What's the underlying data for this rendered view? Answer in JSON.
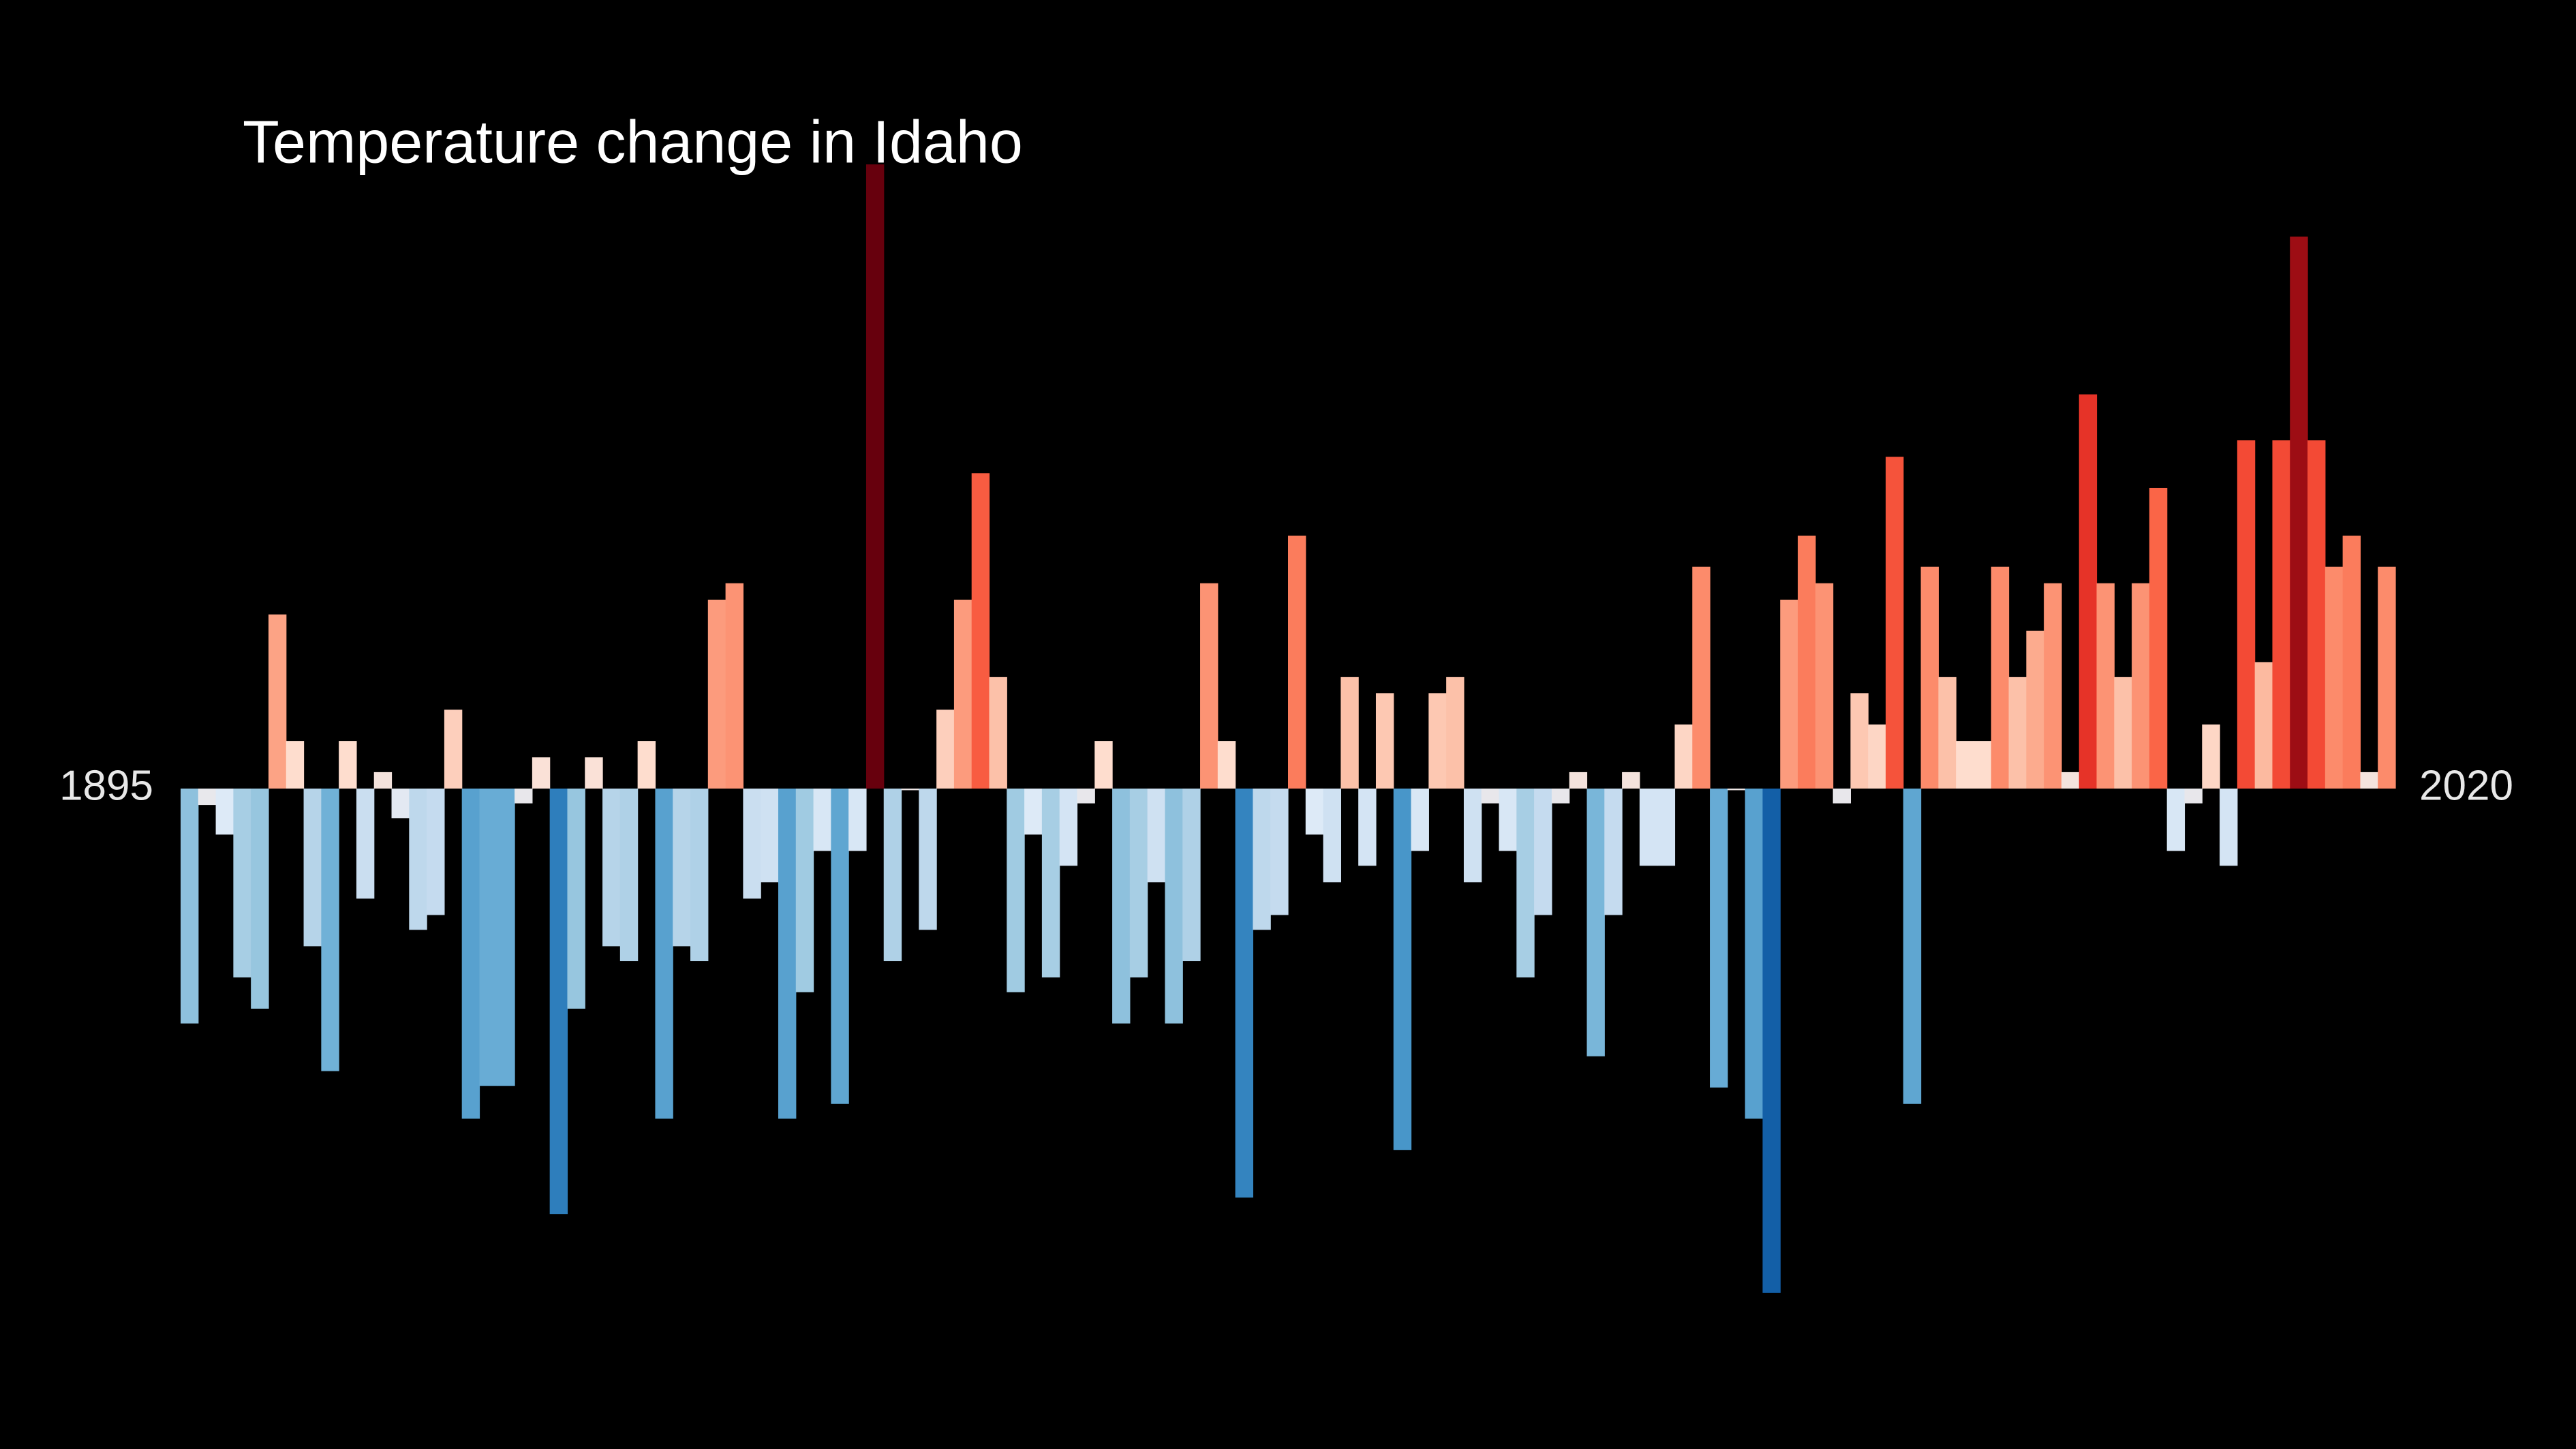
{
  "chart_data": {
    "type": "bar",
    "title": "Temperature change in Idaho",
    "x": [
      1895,
      1896,
      1897,
      1898,
      1899,
      1900,
      1901,
      1902,
      1903,
      1904,
      1905,
      1906,
      1907,
      1908,
      1909,
      1910,
      1911,
      1912,
      1913,
      1914,
      1915,
      1916,
      1917,
      1918,
      1919,
      1920,
      1921,
      1922,
      1923,
      1924,
      1925,
      1926,
      1927,
      1928,
      1929,
      1930,
      1931,
      1932,
      1933,
      1934,
      1935,
      1936,
      1937,
      1938,
      1939,
      1940,
      1941,
      1942,
      1943,
      1944,
      1945,
      1946,
      1947,
      1948,
      1949,
      1950,
      1951,
      1952,
      1953,
      1954,
      1955,
      1956,
      1957,
      1958,
      1959,
      1960,
      1961,
      1962,
      1963,
      1964,
      1965,
      1966,
      1967,
      1968,
      1969,
      1970,
      1971,
      1972,
      1973,
      1974,
      1975,
      1976,
      1977,
      1978,
      1979,
      1980,
      1981,
      1982,
      1983,
      1984,
      1985,
      1986,
      1987,
      1988,
      1989,
      1990,
      1991,
      1992,
      1993,
      1994,
      1995,
      1996,
      1997,
      1998,
      1999,
      2000,
      2001,
      2002,
      2003,
      2004,
      2005,
      2006,
      2007,
      2008,
      2009,
      2010,
      2011,
      2012,
      2013,
      2014,
      2015,
      2016,
      2017,
      2018,
      2019,
      2020
    ],
    "values": [
      -1.43,
      -0.1,
      -0.28,
      -1.15,
      -1.34,
      1.06,
      0.29,
      -0.96,
      -1.72,
      0.29,
      -0.67,
      0.1,
      -0.18,
      -0.86,
      -0.77,
      0.48,
      -2.01,
      -1.81,
      -1.81,
      -0.09,
      0.19,
      -2.59,
      -1.34,
      0.19,
      -0.96,
      -1.05,
      0.29,
      -2.01,
      -0.96,
      -1.05,
      1.15,
      1.25,
      -0.67,
      -0.57,
      -2.01,
      -1.24,
      -0.38,
      -1.92,
      -0.38,
      3.8,
      -1.05,
      -0.01,
      -0.86,
      0.48,
      1.15,
      1.92,
      0.68,
      -1.24,
      -0.28,
      -1.15,
      -0.47,
      -0.09,
      0.29,
      -1.43,
      -1.15,
      -0.57,
      -1.43,
      -1.05,
      1.25,
      0.29,
      -2.49,
      -0.86,
      -0.77,
      1.54,
      -0.28,
      -0.57,
      0.68,
      -0.47,
      0.58,
      -2.2,
      -0.38,
      0.58,
      0.68,
      -0.57,
      -0.09,
      -0.38,
      -1.15,
      -0.77,
      -0.09,
      0.1,
      -1.63,
      -0.77,
      0.1,
      -0.47,
      -0.47,
      0.39,
      1.35,
      -1.82,
      -0.01,
      -2.01,
      -3.07,
      1.15,
      1.54,
      1.25,
      -0.09,
      0.58,
      0.39,
      2.02,
      -1.92,
      1.35,
      0.68,
      0.29,
      0.29,
      1.35,
      0.68,
      0.96,
      1.25,
      0.1,
      2.4,
      1.25,
      0.68,
      1.25,
      1.83,
      -0.38,
      -0.09,
      0.39,
      -0.47,
      2.12,
      0.77,
      2.12,
      3.36,
      2.12,
      1.35,
      1.54,
      0.1,
      1.35
    ],
    "xlim": [
      1895,
      2021
    ],
    "xticks": [
      1895,
      2020
    ],
    "ylim": [
      -4,
      4
    ],
    "clim": [
      -3.8,
      3.8
    ],
    "colormap": [
      "#08306b",
      "#08519c",
      "#2171b5",
      "#4292c6",
      "#6baed6",
      "#9ecae1",
      "#c6dbef",
      "#deebf7",
      "#fee0d2",
      "#fcbba1",
      "#fc9272",
      "#fb6a4a",
      "#ef3b2c",
      "#cb181d",
      "#a50f15",
      "#67000d"
    ],
    "background": "#000000"
  }
}
